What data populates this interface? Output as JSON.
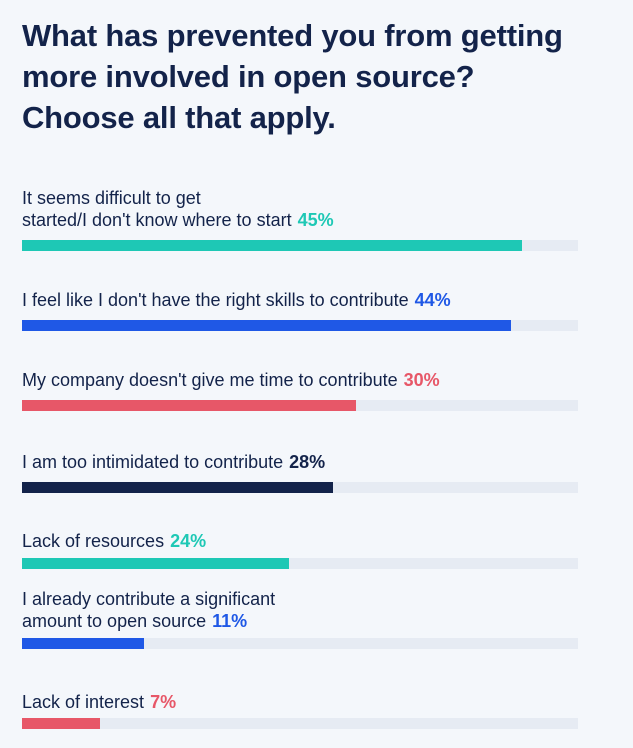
{
  "chart_data": {
    "type": "bar",
    "title": "What has prevented you from getting\nmore involved in open source?\nChoose all that apply.",
    "unit": "%",
    "max": 50,
    "series": [
      {
        "label": "It seems difficult to get\nstarted/I don't know where to start",
        "value": 45,
        "value_label": "45%",
        "color": "#1ec8b5"
      },
      {
        "label": "I feel like I don't have the right skills to contribute",
        "value": 44,
        "value_label": "44%",
        "color": "#1f58e6"
      },
      {
        "label": "My company doesn't give me time to contribute",
        "value": 30,
        "value_label": "30%",
        "color": "#e75768"
      },
      {
        "label": "I am too intimidated to contribute",
        "value": 28,
        "value_label": "28%",
        "color": "#13234a"
      },
      {
        "label": "Lack of resources",
        "value": 24,
        "value_label": "24%",
        "color": "#1ec8b5"
      },
      {
        "label": "I already contribute a significant\namount to open source",
        "value": 11,
        "value_label": "11%",
        "color": "#1f58e6"
      },
      {
        "label": "Lack of interest",
        "value": 7,
        "value_label": "7%",
        "color": "#e75768"
      }
    ]
  }
}
